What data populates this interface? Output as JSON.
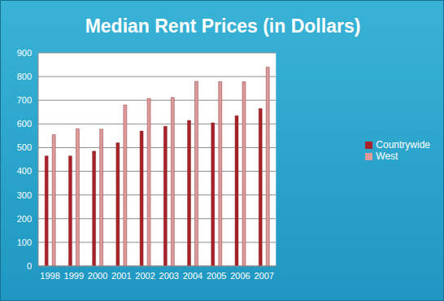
{
  "chart_data": {
    "type": "bar",
    "title": "Median Rent Prices (in Dollars)",
    "categories": [
      "1998",
      "1999",
      "2000",
      "2001",
      "2002",
      "2003",
      "2004",
      "2005",
      "2006",
      "2007"
    ],
    "series": [
      {
        "name": "Countrywide",
        "color": "#a8222a",
        "values": [
          465,
          465,
          485,
          520,
          570,
          590,
          615,
          605,
          635,
          665
        ]
      },
      {
        "name": "West",
        "color": "#dc9a9a",
        "values": [
          555,
          580,
          578,
          680,
          708,
          712,
          780,
          778,
          778,
          840
        ]
      }
    ],
    "ylim": [
      0,
      900
    ],
    "yticks": [
      0,
      100,
      200,
      300,
      400,
      500,
      600,
      700,
      800,
      900
    ],
    "grid": true,
    "legend": "right"
  }
}
